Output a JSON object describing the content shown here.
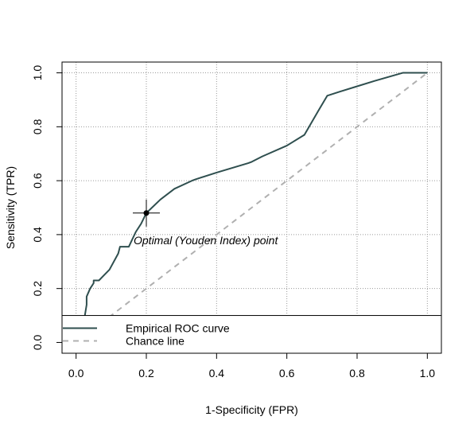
{
  "chart_data": {
    "type": "line",
    "xlabel": "1-Specificity (FPR)",
    "ylabel": "Sensitivity (TPR)",
    "xlim": [
      -0.04,
      1.04
    ],
    "ylim": [
      -0.04,
      1.04
    ],
    "xticks": [
      0.0,
      0.2,
      0.4,
      0.6,
      0.8,
      1.0
    ],
    "yticks": [
      0.0,
      0.2,
      0.4,
      0.6,
      0.8,
      1.0
    ],
    "x_tick_labels": [
      "0.0",
      "0.2",
      "0.4",
      "0.6",
      "0.8",
      "1.0"
    ],
    "y_tick_labels": [
      "0.0",
      "0.2",
      "0.4",
      "0.6",
      "0.8",
      "1.0"
    ],
    "grid": true,
    "series": [
      {
        "name": "Empirical ROC curve",
        "color": "#2f4f4f",
        "style": "solid",
        "points": [
          [
            0.0,
            0.0
          ],
          [
            0.01,
            0.02
          ],
          [
            0.02,
            0.06
          ],
          [
            0.025,
            0.1
          ],
          [
            0.03,
            0.14
          ],
          [
            0.03,
            0.17
          ],
          [
            0.04,
            0.2
          ],
          [
            0.045,
            0.21
          ],
          [
            0.05,
            0.22
          ],
          [
            0.05,
            0.23
          ],
          [
            0.065,
            0.23
          ],
          [
            0.08,
            0.25
          ],
          [
            0.095,
            0.27
          ],
          [
            0.12,
            0.33
          ],
          [
            0.125,
            0.355
          ],
          [
            0.15,
            0.355
          ],
          [
            0.17,
            0.41
          ],
          [
            0.185,
            0.44
          ],
          [
            0.2,
            0.48
          ],
          [
            0.24,
            0.53
          ],
          [
            0.28,
            0.57
          ],
          [
            0.33,
            0.6
          ],
          [
            0.34,
            0.605
          ],
          [
            0.4,
            0.63
          ],
          [
            0.49,
            0.665
          ],
          [
            0.5,
            0.67
          ],
          [
            0.53,
            0.69
          ],
          [
            0.6,
            0.73
          ],
          [
            0.65,
            0.77
          ],
          [
            0.69,
            0.86
          ],
          [
            0.715,
            0.915
          ],
          [
            0.75,
            0.93
          ],
          [
            0.8,
            0.95
          ],
          [
            0.85,
            0.97
          ],
          [
            0.93,
            1.0
          ],
          [
            1.0,
            1.0
          ]
        ]
      },
      {
        "name": "Chance line",
        "color": "#b0b0b0",
        "style": "dashed",
        "points": [
          [
            0.0,
            0.0
          ],
          [
            1.0,
            1.0
          ]
        ]
      }
    ],
    "optimal_point": {
      "x": 0.2,
      "y": 0.48,
      "label": "Optimal (Youden Index) point"
    },
    "legend": {
      "position": "bottom"
    }
  }
}
